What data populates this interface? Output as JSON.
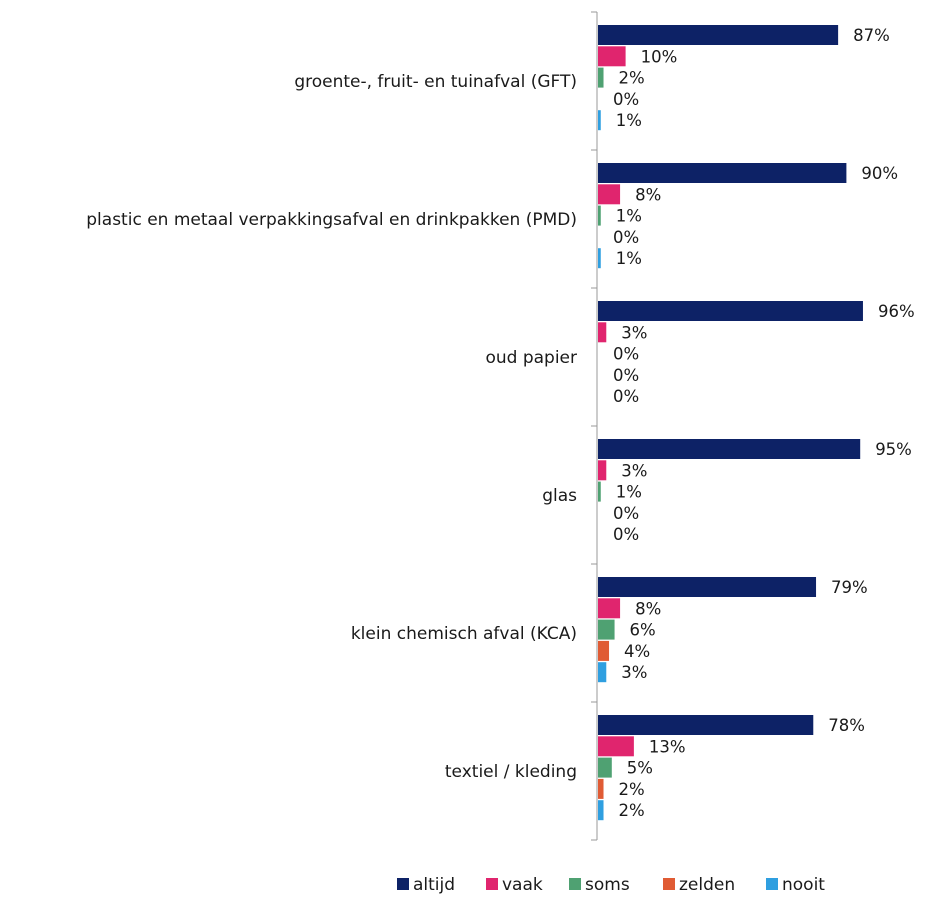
{
  "chart_data": {
    "type": "bar",
    "orientation": "horizontal",
    "categories": [
      "groente-, fruit- en tuinafval (GFT)",
      "plastic en metaal verpakkingsafval en drinkpakken (PMD)",
      "oud papier",
      "glas",
      "klein chemisch afval (KCA)",
      "textiel / kleding"
    ],
    "series": [
      {
        "name": "altijd",
        "color": "#0d2266",
        "values": [
          87,
          90,
          96,
          95,
          79,
          78
        ],
        "labels": [
          "87%",
          "90%",
          "96%",
          "95%",
          "79%",
          "78%"
        ]
      },
      {
        "name": "vaak",
        "color": "#e0256e",
        "values": [
          10,
          8,
          3,
          3,
          8,
          13
        ],
        "labels": [
          "10%",
          "8%",
          "3%",
          "3%",
          "8%",
          "13%"
        ]
      },
      {
        "name": "soms",
        "color": "#4fa172",
        "values": [
          2,
          1,
          0,
          1,
          6,
          5
        ],
        "labels": [
          "2%",
          "1%",
          "0%",
          "1%",
          "6%",
          "5%"
        ]
      },
      {
        "name": "zelden",
        "color": "#e05b34",
        "values": [
          0,
          0,
          0,
          0,
          4,
          2
        ],
        "labels": [
          "0%",
          "0%",
          "0%",
          "0%",
          "4%",
          "2%"
        ]
      },
      {
        "name": "nooit",
        "color": "#2f9fe0",
        "values": [
          1,
          1,
          0,
          0,
          3,
          2
        ],
        "labels": [
          "1%",
          "1%",
          "0%",
          "0%",
          "3%",
          "2%"
        ]
      }
    ],
    "xlim": [
      0,
      100
    ],
    "grid": false,
    "legend": "bottom"
  }
}
